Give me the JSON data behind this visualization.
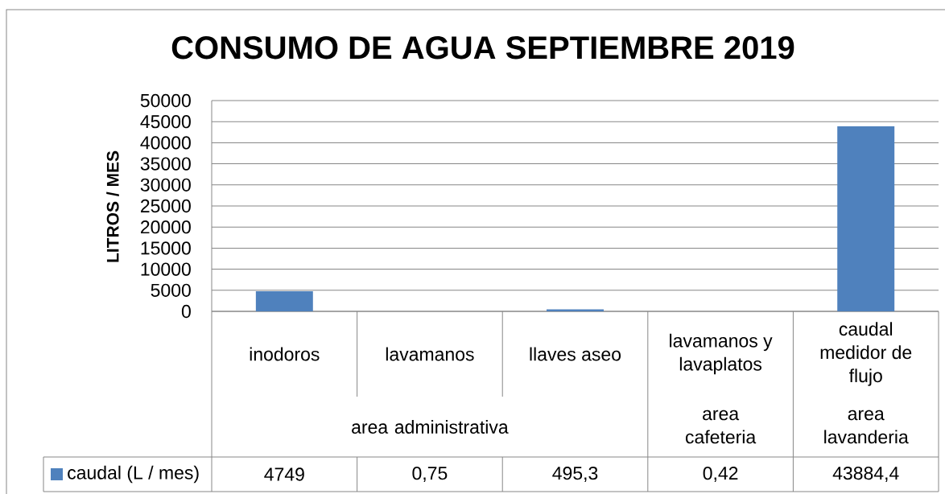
{
  "chart_data": {
    "type": "bar",
    "title": "CONSUMO DE AGUA SEPTIEMBRE 2019",
    "ylabel": "LITROS / MES",
    "categories": [
      "inodoros",
      "lavamanos",
      "llaves aseo",
      "lavamanos y lavaplatos",
      "caudal medidor de flujo"
    ],
    "series": [
      {
        "name": "caudal (L / mes)",
        "color": "#4f81bd",
        "values": [
          4749,
          0.75,
          495.3,
          0.42,
          43884.4
        ],
        "value_labels": [
          "4749",
          "0,75",
          "495,3",
          "0,42",
          "43884,4"
        ]
      }
    ],
    "ylim": [
      0,
      50000
    ],
    "yticks": [
      0,
      5000,
      10000,
      15000,
      20000,
      25000,
      30000,
      35000,
      40000,
      45000,
      50000
    ],
    "grid": "y",
    "legend": "bottom left",
    "annotations": [
      "area administrativa",
      "area cafeteria",
      "area lavanderia"
    ]
  }
}
